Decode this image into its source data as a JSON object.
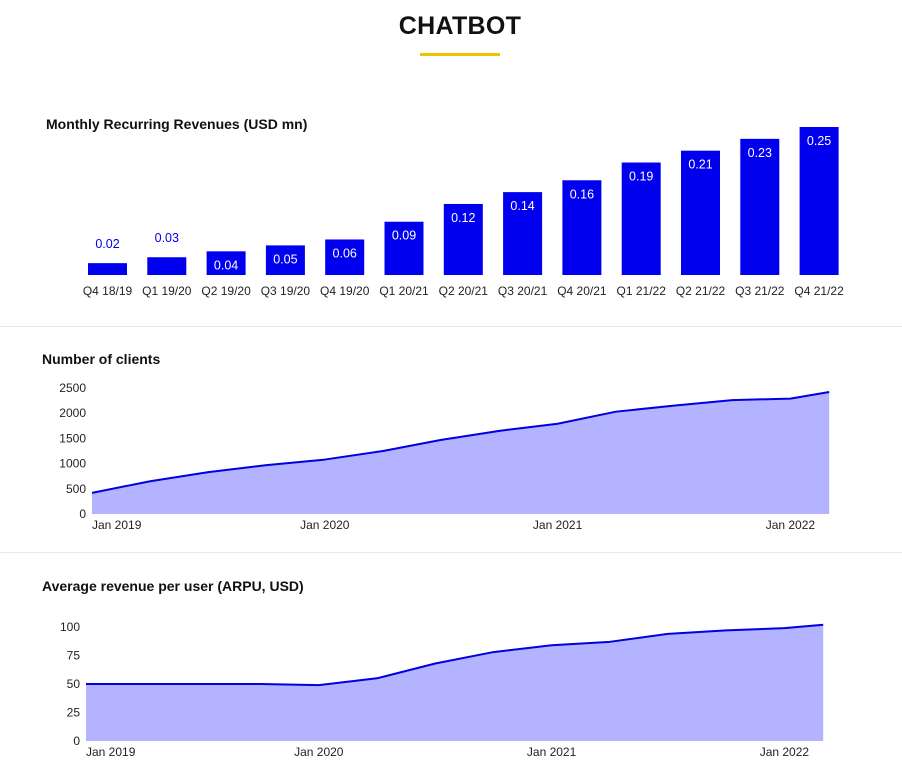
{
  "header": {
    "title": "CHATBOT"
  },
  "colors": {
    "accent": "#f2c200",
    "bar": "#0000ee",
    "area_fill": "#b3b3ff",
    "area_line": "#0000e0"
  },
  "chart_data": [
    {
      "type": "bar",
      "title": "Monthly Recurring Revenues (USD mn)",
      "categories": [
        "Q4 18/19",
        "Q1 19/20",
        "Q2 19/20",
        "Q3 19/20",
        "Q4 19/20",
        "Q1 20/21",
        "Q2 20/21",
        "Q3 20/21",
        "Q4 20/21",
        "Q1 21/22",
        "Q2 21/22",
        "Q3 21/22",
        "Q4 21/22"
      ],
      "values": [
        0.02,
        0.03,
        0.04,
        0.05,
        0.06,
        0.09,
        0.12,
        0.14,
        0.16,
        0.19,
        0.21,
        0.23,
        0.25
      ],
      "data_labels": [
        "0.02",
        "0.03",
        "0.04",
        "0.05",
        "0.06",
        "0.09",
        "0.12",
        "0.14",
        "0.16",
        "0.19",
        "0.21",
        "0.23",
        "0.25"
      ],
      "xlabel": "",
      "ylabel": "",
      "grid": false
    },
    {
      "type": "area",
      "title": "Number of clients",
      "x": [
        "2019-01",
        "2019-04",
        "2019-07",
        "2019-10",
        "2020-01",
        "2020-04",
        "2020-07",
        "2020-10",
        "2021-01",
        "2021-04",
        "2021-07",
        "2021-10",
        "2022-01",
        "2022-03"
      ],
      "values": [
        420,
        650,
        830,
        970,
        1080,
        1250,
        1470,
        1650,
        1790,
        2030,
        2150,
        2260,
        2290,
        2420
      ],
      "x_ticks": [
        "Jan 2019",
        "Jan 2020",
        "Jan 2021",
        "Jan 2022"
      ],
      "y_ticks": [
        "0",
        "500",
        "1000",
        "1500",
        "2000",
        "2500"
      ],
      "ylim": [
        0,
        2500
      ],
      "grid": false
    },
    {
      "type": "area",
      "title": "Average revenue per user (ARPU, USD)",
      "x": [
        "2019-01",
        "2019-04",
        "2019-07",
        "2019-10",
        "2020-01",
        "2020-04",
        "2020-07",
        "2020-10",
        "2021-01",
        "2021-04",
        "2021-07",
        "2021-10",
        "2022-01",
        "2022-03"
      ],
      "values": [
        50,
        50,
        50,
        50,
        49,
        55,
        68,
        78,
        84,
        87,
        94,
        97,
        99,
        102
      ],
      "x_ticks": [
        "Jan 2019",
        "Jan 2020",
        "Jan 2021",
        "Jan 2022"
      ],
      "y_ticks": [
        "0",
        "25",
        "50",
        "75",
        "100"
      ],
      "ylim": [
        0,
        100
      ],
      "grid": false
    }
  ]
}
